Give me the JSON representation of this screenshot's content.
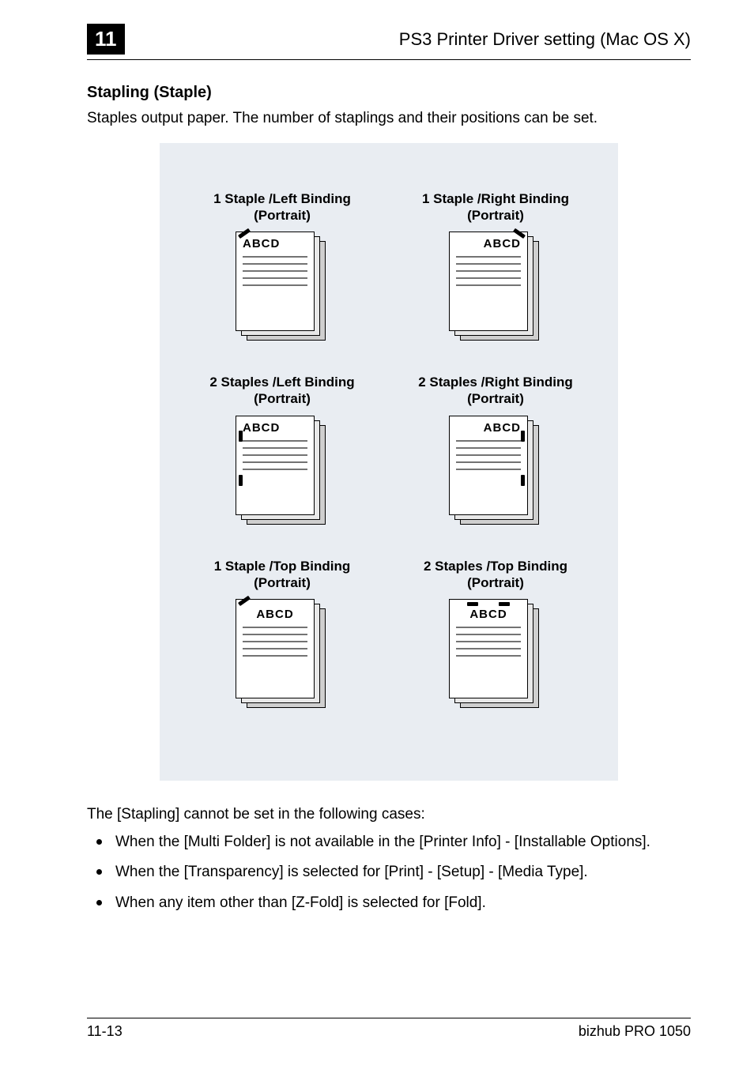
{
  "header": {
    "chapter_number": "11",
    "title": "PS3 Printer Driver setting (Mac OS X)"
  },
  "section": {
    "title": "Stapling (Staple)",
    "intro": "Staples output paper. The number of staplings and their positions can be set."
  },
  "diagram": {
    "panel_bg": "#e9edf2",
    "sheet_front_bg": "#ffffff",
    "sheet_mid_bg": "#e8e8e8",
    "sheet_back_bg": "#cfcfcf",
    "border_color": "#000000",
    "line_color": "#000000",
    "line_opacity": 0.55,
    "label_fontsize": 17,
    "abcd_fontsize": 15,
    "cells": [
      {
        "label": "1 Staple /Left Binding\n(Portrait)",
        "abcd": "ABCD",
        "abcd_align": "left",
        "staples": [
          {
            "type": "diag-tl"
          }
        ]
      },
      {
        "label": "1 Staple /Right Binding\n(Portrait)",
        "abcd": "ABCD",
        "abcd_align": "right",
        "staples": [
          {
            "type": "diag-tr"
          }
        ]
      },
      {
        "label": "2 Staples /Left Binding\n(Portrait)",
        "abcd": "ABCD",
        "abcd_align": "left",
        "staples": [
          {
            "type": "v-left-top"
          },
          {
            "type": "v-left-bot"
          }
        ]
      },
      {
        "label": "2 Staples /Right Binding\n(Portrait)",
        "abcd": "ABCD",
        "abcd_align": "right",
        "staples": [
          {
            "type": "v-right-top"
          },
          {
            "type": "v-right-bot"
          }
        ]
      },
      {
        "label": "1 Staple /Top Binding\n(Portrait)",
        "abcd": "ABCD",
        "abcd_align": "top",
        "staples": [
          {
            "type": "diag-tl"
          }
        ]
      },
      {
        "label": "2 Staples /Top Binding\n(Portrait)",
        "abcd": "ABCD",
        "abcd_align": "top",
        "staples": [
          {
            "type": "h-top-l"
          },
          {
            "type": "h-top-r"
          }
        ]
      }
    ]
  },
  "notes": {
    "lead": "The [Stapling] cannot be set in the following cases:",
    "items": [
      "When the [Multi Folder] is not available in the [Printer Info] - [Installable Options].",
      "When the [Transparency] is selected for [Print] - [Setup] - [Media Type].",
      "When any item other than [Z-Fold] is selected for [Fold]."
    ]
  },
  "footer": {
    "page": "11-13",
    "product": "bizhub PRO 1050"
  },
  "typography": {
    "body_fontsize": 19,
    "header_title_fontsize": 22,
    "chapter_fontsize": 26,
    "section_title_fontsize": 20,
    "footer_fontsize": 18,
    "font_family": "Arial, Helvetica, sans-serif"
  },
  "colors": {
    "page_bg": "#ffffff",
    "text": "#000000",
    "chapter_badge_bg": "#000000",
    "chapter_badge_fg": "#ffffff",
    "rule": "#000000"
  }
}
